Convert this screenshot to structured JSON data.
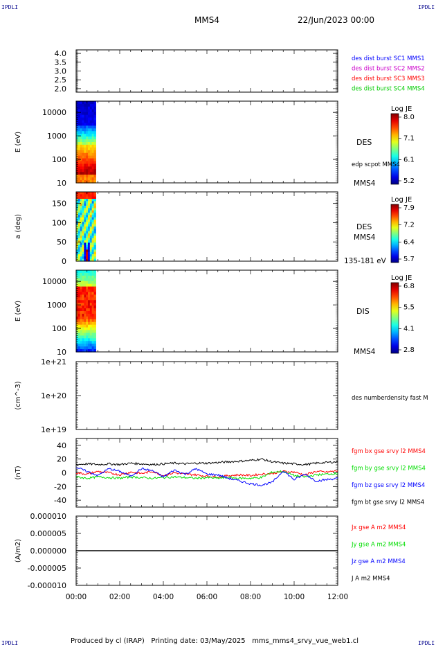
{
  "header": {
    "corner_tl": "IPDLI",
    "corner_tr": "IPDLI",
    "corner_bl": "IPDLI",
    "corner_br": "IPDLI",
    "spacecraft": "MMS4",
    "date": "22/Jun/2023 00:00"
  },
  "footer": {
    "text": "Produced by cl (IRAP)   Printing date: 03/May/2025   mms_mms4_srvy_vue_web1.cl"
  },
  "x_axis": {
    "ticks": [
      "00:00",
      "02:00",
      "04:00",
      "06:00",
      "08:00",
      "10:00",
      "12:00"
    ],
    "range_hours": [
      0,
      12
    ]
  },
  "colors": {
    "c1": "#0000ff",
    "c2": "#cc00cc",
    "c3": "#ff0000",
    "c4": "#00cc00",
    "bx": "#ff0000",
    "by": "#00dd00",
    "bz": "#0000ff",
    "bt": "#000000"
  },
  "chart_data": [
    {
      "id": "panel1",
      "type": "line",
      "ylim": [
        1.8,
        4.2
      ],
      "yticks": [
        "4.0",
        "3.5",
        "3.0",
        "2.5",
        "2.0"
      ],
      "ytick_values": [
        4.0,
        3.5,
        3.0,
        2.5,
        2.0
      ],
      "ylabel": "",
      "legend": [
        {
          "name": "des dist burst SC1 MMS1",
          "color": "#0000ff"
        },
        {
          "name": "des dist burst SC2 MMS2",
          "color": "#cc00cc"
        },
        {
          "name": "des dist burst SC3 MMS3",
          "color": "#ff0000"
        },
        {
          "name": "des dist burst SC4 MMS4",
          "color": "#00cc00"
        }
      ],
      "series": []
    },
    {
      "id": "panel2",
      "type": "heatmap",
      "ylabel": "E (eV)",
      "yscale": "log",
      "ylim": [
        10,
        30000
      ],
      "yticks": [
        "10000",
        "1000",
        "100",
        "10"
      ],
      "ytick_values": [
        10000,
        1000,
        100,
        10
      ],
      "data_x_range_hours": [
        0.0,
        0.9
      ],
      "label": "DES",
      "side_labels": [
        "edp scpot MMS4",
        "MMS4"
      ],
      "colorbar": {
        "title": "Log JE",
        "ticks": [
          "8.0",
          "7.1",
          "6.1",
          "5.2"
        ],
        "range": [
          5.2,
          8.0
        ]
      }
    },
    {
      "id": "panel3",
      "type": "heatmap",
      "ylabel": "a (deg)",
      "ylim": [
        0,
        180
      ],
      "yticks": [
        "150",
        "100",
        "50",
        "0"
      ],
      "ytick_values": [
        150,
        100,
        50,
        0
      ],
      "data_x_range_hours": [
        0.0,
        0.9
      ],
      "label": "DES",
      "side_labels": [
        "MMS4",
        "135-181 eV"
      ],
      "colorbar": {
        "title": "Log JE",
        "ticks": [
          "7.9",
          "7.2",
          "6.4",
          "5.7"
        ],
        "range": [
          5.7,
          7.9
        ]
      }
    },
    {
      "id": "panel4",
      "type": "heatmap",
      "ylabel": "E (eV)",
      "yscale": "log",
      "ylim": [
        10,
        30000
      ],
      "yticks": [
        "10000",
        "1000",
        "100",
        "10"
      ],
      "ytick_values": [
        10000,
        1000,
        100,
        10
      ],
      "data_x_range_hours": [
        0.0,
        0.9
      ],
      "label": "DIS",
      "side_labels": [
        "MMS4"
      ],
      "colorbar": {
        "title": "Log JE",
        "ticks": [
          "6.8",
          "5.5",
          "4.1",
          "2.8"
        ],
        "range": [
          2.8,
          6.8
        ]
      }
    },
    {
      "id": "panel5",
      "type": "line",
      "ylabel": "(cm^-3)",
      "yscale": "log",
      "ylim": [
        1e+19,
        1e+21
      ],
      "yticks": [
        "1e+21",
        "1e+20",
        "1e+19"
      ],
      "ytick_values": [
        1e+21,
        1e+20,
        1e+19
      ],
      "legend": [
        {
          "name": "des numberdensity fast M",
          "color": "#000000"
        }
      ],
      "series": []
    },
    {
      "id": "panel6",
      "type": "line",
      "ylabel": "(nT)",
      "ylim": [
        -50,
        50
      ],
      "yticks": [
        "40",
        "20",
        "0",
        "-20",
        "-40"
      ],
      "ytick_values": [
        40,
        20,
        0,
        -20,
        -40
      ],
      "legend": [
        {
          "name": "fgm bx gse srvy l2 MMS4",
          "color": "#ff0000"
        },
        {
          "name": "fgm by gse srvy l2 MMS4",
          "color": "#00dd00"
        },
        {
          "name": "fgm bz gse srvy l2 MMS4",
          "color": "#0000ff"
        },
        {
          "name": "fgm bt gse srvy l2 MMS4",
          "color": "#000000"
        }
      ],
      "series": [
        {
          "name": "fgm bt gse srvy l2 MMS4",
          "color": "#000000",
          "x": [
            0,
            0.5,
            1,
            1.5,
            2,
            2.5,
            3,
            3.5,
            4,
            4.5,
            5,
            5.5,
            6,
            6.5,
            7,
            7.5,
            8,
            8.5,
            9,
            9.5,
            10,
            10.5,
            11,
            11.5,
            12
          ],
          "y": [
            12,
            13,
            12,
            13,
            12,
            14,
            13,
            12,
            13,
            14,
            13,
            14,
            14,
            15,
            16,
            17,
            18,
            20,
            16,
            14,
            13,
            12,
            14,
            15,
            16
          ]
        },
        {
          "name": "fgm bx gse srvy l2 MMS4",
          "color": "#ff0000",
          "x": [
            0,
            0.5,
            1,
            1.5,
            2,
            2.5,
            3,
            3.5,
            4,
            4.5,
            5,
            5.5,
            6,
            6.5,
            7,
            7.5,
            8,
            8.5,
            9,
            9.5,
            10,
            10.5,
            11,
            11.5,
            12
          ],
          "y": [
            0,
            -2,
            2,
            0,
            -3,
            1,
            -1,
            2,
            -4,
            0,
            -2,
            -3,
            -5,
            -6,
            -4,
            -3,
            -4,
            -2,
            -1,
            2,
            1,
            -3,
            2,
            1,
            3
          ]
        },
        {
          "name": "fgm by gse srvy l2 MMS4",
          "color": "#00dd00",
          "x": [
            0,
            0.5,
            1,
            1.5,
            2,
            2.5,
            3,
            3.5,
            4,
            4.5,
            5,
            5.5,
            6,
            6.5,
            7,
            7.5,
            8,
            8.5,
            9,
            9.5,
            10,
            10.5,
            11,
            11.5,
            12
          ],
          "y": [
            -6,
            -8,
            -6,
            -7,
            -8,
            -6,
            -7,
            -8,
            -7,
            -6,
            -7,
            -8,
            -7,
            -8,
            -7,
            -8,
            -8,
            -7,
            1,
            2,
            -4,
            -6,
            -3,
            -2,
            -1
          ]
        },
        {
          "name": "fgm bz gse srvy l2 MMS4",
          "color": "#0000ff",
          "x": [
            0,
            0.5,
            1,
            1.5,
            2,
            2.5,
            3,
            3.5,
            4,
            4.5,
            5,
            5.5,
            6,
            6.5,
            7,
            7.5,
            8,
            8.5,
            9,
            9.5,
            10,
            10.5,
            11,
            11.5,
            12
          ],
          "y": [
            8,
            2,
            -4,
            6,
            2,
            -5,
            6,
            3,
            -6,
            4,
            -2,
            6,
            -2,
            -3,
            -8,
            -12,
            -16,
            -18,
            -14,
            3,
            -10,
            -2,
            -12,
            -10,
            -8
          ]
        }
      ]
    },
    {
      "id": "panel7",
      "type": "line",
      "ylabel": "(A/m2)",
      "ylim": [
        -1e-05,
        1e-05
      ],
      "yticks": [
        "0.000010",
        "0.000005",
        "0.000000",
        "-0.000005",
        "-0.000010"
      ],
      "ytick_values": [
        1e-05,
        5e-06,
        0,
        -5e-06,
        -1e-05
      ],
      "legend": [
        {
          "name": "Jx gse A m2 MMS4",
          "color": "#ff0000"
        },
        {
          "name": "Jy gse A m2 MMS4",
          "color": "#00dd00"
        },
        {
          "name": "Jz gse A m2 MMS4",
          "color": "#0000ff"
        },
        {
          "name": "J A m2 MMS4",
          "color": "#000000"
        }
      ],
      "series": [
        {
          "name": "J A m2 MMS4",
          "color": "#000000",
          "x": [
            0,
            12
          ],
          "y": [
            0,
            0
          ]
        }
      ]
    }
  ]
}
